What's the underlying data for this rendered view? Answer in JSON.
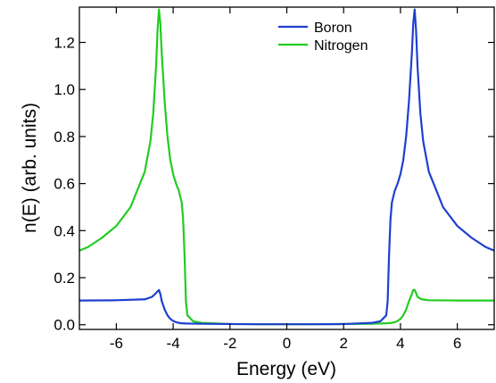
{
  "chart_data": {
    "type": "line",
    "title": "",
    "xlabel": "Energy (eV)",
    "ylabel": "n(E) (arb. units)",
    "xlim": [
      -7.3,
      7.3
    ],
    "ylim": [
      -0.02,
      1.35
    ],
    "x_ticks": [
      -6,
      -4,
      -2,
      0,
      2,
      4,
      6
    ],
    "y_ticks": [
      0.0,
      0.2,
      0.4,
      0.6,
      0.8,
      1.0,
      1.2
    ],
    "x_tick_labels": [
      "-6",
      "-4",
      "-2",
      "0",
      "2",
      "4",
      "6"
    ],
    "y_tick_labels": [
      "0.0",
      "0.2",
      "0.4",
      "0.6",
      "0.8",
      "1.0",
      "1.2"
    ],
    "grid": false,
    "legend_position": "top-center",
    "series": [
      {
        "name": "Boron",
        "color": "#1f3fd0",
        "x": [
          -7.3,
          -6.0,
          -5.0,
          -4.75,
          -4.6,
          -4.5,
          -4.45,
          -4.4,
          -4.3,
          -4.2,
          -4.1,
          -4.0,
          -3.9,
          -3.8,
          -3.7,
          -3.5,
          -3.0,
          -2.0,
          -1.0,
          0.0,
          1.0,
          2.0,
          3.0,
          3.3,
          3.5,
          3.55,
          3.6,
          3.65,
          3.7,
          3.8,
          3.9,
          4.0,
          4.1,
          4.2,
          4.3,
          4.4,
          4.45,
          4.5,
          4.55,
          4.6,
          4.7,
          4.8,
          5.0,
          5.5,
          6.0,
          6.5,
          7.0,
          7.3
        ],
        "y": [
          0.103,
          0.104,
          0.108,
          0.118,
          0.135,
          0.148,
          0.13,
          0.1,
          0.065,
          0.04,
          0.025,
          0.016,
          0.011,
          0.008,
          0.006,
          0.005,
          0.004,
          0.003,
          0.002,
          0.002,
          0.002,
          0.003,
          0.008,
          0.015,
          0.04,
          0.1,
          0.3,
          0.45,
          0.52,
          0.57,
          0.6,
          0.64,
          0.7,
          0.8,
          0.95,
          1.15,
          1.28,
          1.34,
          1.25,
          1.1,
          0.9,
          0.78,
          0.65,
          0.5,
          0.42,
          0.37,
          0.33,
          0.315
        ]
      },
      {
        "name": "Nitrogen",
        "color": "#22cc22",
        "x": [
          -7.3,
          -7.0,
          -6.5,
          -6.0,
          -5.5,
          -5.0,
          -4.8,
          -4.7,
          -4.6,
          -4.55,
          -4.5,
          -4.45,
          -4.4,
          -4.3,
          -4.2,
          -4.1,
          -4.0,
          -3.9,
          -3.8,
          -3.7,
          -3.65,
          -3.6,
          -3.55,
          -3.5,
          -3.3,
          -3.0,
          -2.0,
          -1.0,
          0.0,
          1.0,
          2.0,
          3.0,
          3.3,
          3.5,
          3.7,
          3.8,
          3.9,
          4.0,
          4.1,
          4.2,
          4.3,
          4.4,
          4.45,
          4.5,
          4.55,
          4.6,
          4.75,
          5.0,
          6.0,
          7.3
        ],
        "y": [
          0.315,
          0.33,
          0.37,
          0.42,
          0.5,
          0.65,
          0.78,
          0.9,
          1.1,
          1.25,
          1.34,
          1.28,
          1.15,
          0.95,
          0.8,
          0.7,
          0.64,
          0.6,
          0.57,
          0.52,
          0.45,
          0.3,
          0.1,
          0.04,
          0.015,
          0.008,
          0.003,
          0.002,
          0.002,
          0.002,
          0.003,
          0.004,
          0.005,
          0.006,
          0.008,
          0.011,
          0.016,
          0.025,
          0.04,
          0.065,
          0.1,
          0.13,
          0.148,
          0.148,
          0.135,
          0.118,
          0.108,
          0.104,
          0.103,
          0.103
        ]
      }
    ]
  }
}
